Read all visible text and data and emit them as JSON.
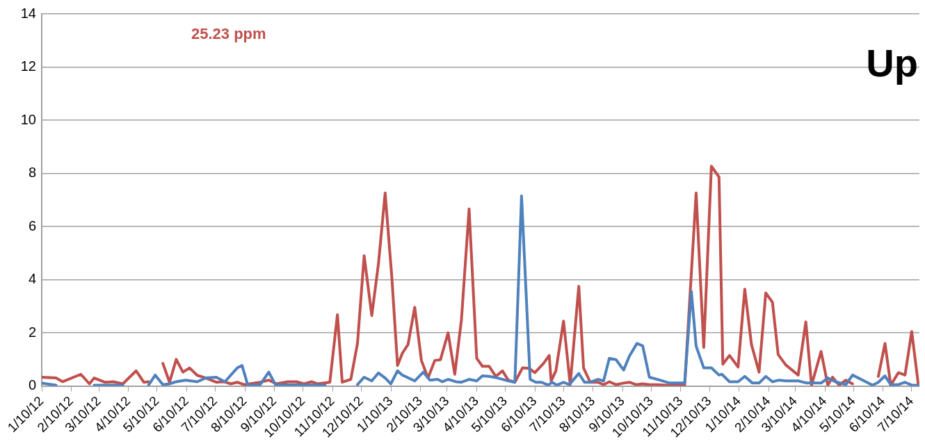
{
  "chart_data": {
    "type": "line",
    "annotations": [
      "25.23 ppm",
      "Up"
    ],
    "xlim": [
      "2012-01-10",
      "2014-07-18"
    ],
    "xticks": [
      {
        "value": "2012-01-10",
        "label": "1/10/12"
      },
      {
        "value": "2012-02-10",
        "label": "2/10/12"
      },
      {
        "value": "2012-03-10",
        "label": "3/10/12"
      },
      {
        "value": "2012-04-10",
        "label": "4/10/12"
      },
      {
        "value": "2012-05-10",
        "label": "5/10/12"
      },
      {
        "value": "2012-06-10",
        "label": "6/10/12"
      },
      {
        "value": "2012-07-10",
        "label": "7/10/12"
      },
      {
        "value": "2012-08-10",
        "label": "8/10/12"
      },
      {
        "value": "2012-09-10",
        "label": "9/10/12"
      },
      {
        "value": "2012-10-10",
        "label": "10/10/12"
      },
      {
        "value": "2012-11-10",
        "label": "11/10/12"
      },
      {
        "value": "2012-12-10",
        "label": "12/10/12"
      },
      {
        "value": "2013-01-10",
        "label": "1/10/13"
      },
      {
        "value": "2013-02-10",
        "label": "2/10/13"
      },
      {
        "value": "2013-03-10",
        "label": "3/10/13"
      },
      {
        "value": "2013-04-10",
        "label": "4/10/13"
      },
      {
        "value": "2013-05-10",
        "label": "5/10/13"
      },
      {
        "value": "2013-06-10",
        "label": "6/10/13"
      },
      {
        "value": "2013-07-10",
        "label": "7/10/13"
      },
      {
        "value": "2013-08-10",
        "label": "8/10/13"
      },
      {
        "value": "2013-09-10",
        "label": "9/10/13"
      },
      {
        "value": "2013-10-10",
        "label": "10/10/13"
      },
      {
        "value": "2013-11-10",
        "label": "11/10/13"
      },
      {
        "value": "2013-12-10",
        "label": "12/10/13"
      },
      {
        "value": "2014-01-10",
        "label": "1/10/14"
      },
      {
        "value": "2014-02-10",
        "label": "2/10/14"
      },
      {
        "value": "2014-03-10",
        "label": "3/10/14"
      },
      {
        "value": "2014-04-10",
        "label": "4/10/14"
      },
      {
        "value": "2014-05-10",
        "label": "5/10/14"
      },
      {
        "value": "2014-06-10",
        "label": "6/10/14"
      },
      {
        "value": "2014-07-10",
        "label": "7/10/14"
      }
    ],
    "ylim": [
      0,
      14
    ],
    "yticks": [
      0,
      2,
      4,
      6,
      8,
      10,
      12,
      14
    ],
    "grid": "y",
    "legend": false,
    "marker": "none",
    "line_style": "solid",
    "series": [
      {
        "color": "#4f81bd",
        "x": [
          "2012-01-10",
          "2012-01-25",
          "2012-02-10",
          "2012-03-05",
          "2012-04-04",
          "2012-04-20",
          "2012-05-01",
          "2012-05-08",
          "2012-05-16",
          "2012-05-23",
          "2012-05-30",
          "2012-06-09",
          "2012-06-21",
          "2012-06-30",
          "2012-07-11",
          "2012-07-20",
          "2012-08-02",
          "2012-08-07",
          "2012-08-13",
          "2012-08-26",
          "2012-09-04",
          "2012-09-11",
          "2012-11-02",
          "2012-11-20",
          "2012-12-06",
          "2012-12-13",
          "2012-12-21",
          "2012-12-28",
          "2013-01-04",
          "2013-01-10",
          "2013-01-17",
          "2013-01-22",
          "2013-02-04",
          "2013-02-13",
          "2013-02-20",
          "2013-02-28",
          "2013-03-05",
          "2013-03-11",
          "2013-03-19",
          "2013-03-25",
          "2013-04-02",
          "2013-04-10",
          "2013-04-16",
          "2013-04-23",
          "2013-05-02",
          "2013-05-13",
          "2013-05-20",
          "2013-05-27",
          "2013-06-05",
          "2013-06-11",
          "2013-06-17",
          "2013-06-24",
          "2013-06-28",
          "2013-07-03",
          "2013-07-10",
          "2013-07-16",
          "2013-07-26",
          "2013-08-01",
          "2013-08-07",
          "2013-08-15",
          "2013-08-21",
          "2013-08-27",
          "2013-09-03",
          "2013-09-11",
          "2013-09-17",
          "2013-09-25",
          "2013-10-01",
          "2013-10-08",
          "2013-10-19",
          "2013-10-29",
          "2013-11-14",
          "2013-11-21",
          "2013-11-26",
          "2013-12-04",
          "2013-12-12",
          "2013-12-20",
          "2013-12-23",
          "2013-12-31",
          "2014-01-09",
          "2014-01-16",
          "2014-01-24",
          "2014-01-31",
          "2014-02-07",
          "2014-02-14",
          "2014-02-21",
          "2014-02-28",
          "2014-03-13",
          "2014-03-22",
          "2014-04-06",
          "2014-04-13",
          "2014-04-21",
          "2014-05-02",
          "2014-05-09",
          "2014-05-30",
          "2014-06-05",
          "2014-06-12",
          "2014-06-18",
          "2014-06-26",
          "2014-07-03",
          "2014-07-10",
          "2014-07-17"
        ],
        "values": [
          0.11,
          0.03,
          null,
          0.03,
          0.03,
          null,
          0.03,
          0.41,
          0.05,
          0.08,
          0.16,
          0.22,
          0.16,
          0.3,
          0.33,
          0.16,
          0.68,
          0.77,
          0.03,
          0.05,
          0.52,
          0.05,
          0.03,
          null,
          0.05,
          0.33,
          0.19,
          0.49,
          0.3,
          0.08,
          0.57,
          0.41,
          0.19,
          0.52,
          0.22,
          0.25,
          0.16,
          0.25,
          0.16,
          0.14,
          0.25,
          0.19,
          0.38,
          0.36,
          0.3,
          0.19,
          0.14,
          7.15,
          0.25,
          0.14,
          0.14,
          0.03,
          0.14,
          0.03,
          0.14,
          0.05,
          0.47,
          0.14,
          0.14,
          0.25,
          0.19,
          1.04,
          0.99,
          0.6,
          1.12,
          1.6,
          1.51,
          0.33,
          0.22,
          0.11,
          0.11,
          3.56,
          1.5,
          0.68,
          0.68,
          0.41,
          0.44,
          0.16,
          0.16,
          0.36,
          0.11,
          0.11,
          0.36,
          0.16,
          0.22,
          0.19,
          0.19,
          0.11,
          0.11,
          0.3,
          0.16,
          0.05,
          0.41,
          0.03,
          0.14,
          0.38,
          0.05,
          0.05,
          0.14,
          0.03,
          0.03
        ]
      },
      {
        "color": "#c0504d",
        "x": [
          "2012-01-10",
          "2012-01-25",
          "2012-02-01",
          "2012-02-20",
          "2012-02-29",
          "2012-03-05",
          "2012-03-16",
          "2012-03-25",
          "2012-04-04",
          "2012-04-18",
          "2012-04-26",
          "2012-05-01",
          "2012-05-09",
          "2012-05-16",
          "2012-05-23",
          "2012-05-30",
          "2012-06-06",
          "2012-06-13",
          "2012-06-21",
          "2012-06-30",
          "2012-07-11",
          "2012-07-19",
          "2012-07-26",
          "2012-08-02",
          "2012-08-09",
          "2012-08-26",
          "2012-09-04",
          "2012-09-12",
          "2012-09-24",
          "2012-10-03",
          "2012-10-11",
          "2012-10-19",
          "2012-10-25",
          "2012-11-07",
          "2012-11-15",
          "2012-11-20",
          "2012-11-29",
          "2012-12-06",
          "2012-12-13",
          "2012-12-21",
          "2012-12-28",
          "2013-01-04",
          "2013-01-11",
          "2013-01-17",
          "2013-01-22",
          "2013-01-28",
          "2013-02-04",
          "2013-02-11",
          "2013-02-18",
          "2013-02-25",
          "2013-03-03",
          "2013-03-11",
          "2013-03-18",
          "2013-03-25",
          "2013-04-02",
          "2013-04-10",
          "2013-04-16",
          "2013-04-23",
          "2013-04-30",
          "2013-05-07",
          "2013-05-13",
          "2013-05-20",
          "2013-05-28",
          "2013-06-04",
          "2013-06-10",
          "2013-06-19",
          "2013-06-25",
          "2013-06-27",
          "2013-07-02",
          "2013-07-10",
          "2013-07-17",
          "2013-07-26",
          "2013-07-31",
          "2013-08-07",
          "2013-08-15",
          "2013-08-21",
          "2013-08-27",
          "2013-09-03",
          "2013-09-11",
          "2013-09-17",
          "2013-09-24",
          "2013-10-01",
          "2013-10-08",
          "2013-10-17",
          "2013-10-25",
          "2013-11-14",
          "2013-11-26",
          "2013-12-04",
          "2013-12-12",
          "2013-12-20",
          "2013-12-24",
          "2013-12-31",
          "2014-01-09",
          "2014-01-16",
          "2014-01-23",
          "2014-01-31",
          "2014-02-07",
          "2014-02-14",
          "2014-02-20",
          "2014-02-28",
          "2014-03-13",
          "2014-03-21",
          "2014-03-27",
          "2014-04-06",
          "2014-04-13",
          "2014-04-18",
          "2014-04-25",
          "2014-05-02",
          "2014-05-09",
          "2014-05-20",
          "2014-06-05",
          "2014-06-12",
          "2014-06-18",
          "2014-06-26",
          "2014-07-03",
          "2014-07-10",
          "2014-07-17"
        ],
        "values": [
          0.33,
          0.3,
          0.16,
          0.44,
          0.08,
          0.3,
          0.14,
          0.16,
          0.08,
          0.57,
          0.14,
          0.16,
          null,
          0.85,
          0.14,
          1.0,
          0.52,
          0.68,
          0.4,
          0.3,
          0.14,
          0.16,
          0.08,
          0.14,
          0.05,
          0.14,
          0.22,
          0.08,
          0.16,
          0.16,
          0.08,
          0.16,
          0.08,
          0.14,
          2.68,
          0.14,
          0.25,
          1.6,
          4.9,
          2.65,
          4.6,
          7.26,
          4.1,
          0.77,
          1.23,
          1.56,
          2.96,
          0.96,
          0.3,
          0.96,
          0.99,
          2.0,
          0.44,
          2.5,
          6.66,
          1.04,
          0.74,
          0.74,
          0.36,
          0.57,
          0.22,
          0.14,
          0.68,
          0.66,
          0.5,
          0.85,
          1.15,
          0.19,
          0.57,
          2.44,
          0.05,
          3.75,
          0.68,
          0.14,
          0.14,
          0.05,
          0.16,
          0.05,
          0.11,
          0.14,
          0.05,
          0.08,
          0.05,
          0.05,
          0.03,
          0.03,
          7.26,
          1.45,
          8.27,
          7.86,
          0.82,
          1.15,
          0.71,
          3.64,
          1.56,
          0.52,
          3.5,
          3.15,
          1.18,
          0.79,
          0.41,
          2.41,
          0.03,
          1.3,
          0.03,
          0.33,
          0.03,
          0.22,
          0.08,
          null,
          0.36,
          1.6,
          0.03,
          0.5,
          0.41,
          2.05,
          0.03
        ]
      }
    ]
  }
}
